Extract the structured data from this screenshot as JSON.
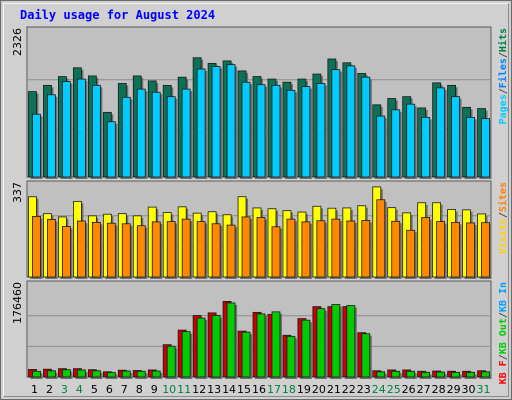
{
  "title": "Daily usage for August 2024",
  "chart_data": {
    "type": "bar",
    "categories": [
      "1",
      "2",
      "3",
      "4",
      "5",
      "6",
      "7",
      "8",
      "9",
      "10",
      "11",
      "12",
      "13",
      "14",
      "15",
      "16",
      "17",
      "18",
      "19",
      "20",
      "21",
      "22",
      "23",
      "24",
      "25",
      "26",
      "27",
      "28",
      "29",
      "30",
      "31"
    ],
    "weekend_categories": [
      "3",
      "4",
      "10",
      "11",
      "17",
      "18",
      "24",
      "25",
      "31"
    ],
    "panels": [
      {
        "id": "hits",
        "ymax": 2326,
        "ymax_label": "2326",
        "legend": [
          {
            "name": "Pages",
            "color": "#00ccff"
          },
          {
            "name": "/",
            "color": "#505050"
          },
          {
            "name": "Files",
            "color": "#0080ff"
          },
          {
            "name": "/",
            "color": "#505050"
          },
          {
            "name": "Hits",
            "color": "#008040"
          }
        ],
        "series": [
          {
            "name": "Hits",
            "color": "#0b7257",
            "values": [
              1360,
              1460,
              1600,
              1740,
              1610,
              1030,
              1490,
              1610,
              1530,
              1460,
              1590,
              1900,
              1810,
              1850,
              1690,
              1600,
              1560,
              1510,
              1560,
              1640,
              1880,
              1820,
              1650,
              1150,
              1250,
              1280,
              1100,
              1500,
              1460,
              1110,
              1090
            ]
          },
          {
            "name": "Files",
            "color": "#00ccff",
            "values": [
              1000,
              1310,
              1520,
              1560,
              1460,
              880,
              1270,
              1400,
              1350,
              1280,
              1400,
              1720,
              1760,
              1790,
              1510,
              1470,
              1460,
              1380,
              1440,
              1490,
              1710,
              1770,
              1590,
              970,
              1070,
              1160,
              950,
              1420,
              1280,
              950,
              930
            ]
          },
          {
            "name": "Pages",
            "color": "#00ccff",
            "values": [
              0,
              0,
              0,
              0,
              0,
              0,
              0,
              0,
              0,
              0,
              0,
              0,
              0,
              0,
              0,
              0,
              0,
              0,
              0,
              0,
              0,
              0,
              0,
              0,
              0,
              0,
              0,
              0,
              0,
              0,
              0
            ]
          }
        ]
      },
      {
        "id": "visits",
        "ymax": 337,
        "ymax_label": "337",
        "legend": [
          {
            "name": "Visits",
            "color": "#ffd000"
          },
          {
            "name": "/",
            "color": "#505050"
          },
          {
            "name": "Sites",
            "color": "#ff8000"
          }
        ],
        "series": [
          {
            "name": "Visits",
            "color": "#ffff00",
            "values": [
              294,
              232,
              220,
              277,
              224,
              230,
              232,
              224,
              256,
              236,
              257,
              234,
              239,
              228,
              294,
              253,
              250,
              243,
              238,
              259,
              252,
              253,
              261,
              330,
              254,
              235,
              272,
              272,
              247,
              246,
              231
            ]
          },
          {
            "name": "Sites",
            "color": "#ff8800",
            "values": [
              222,
              211,
              185,
              205,
              200,
              197,
              195,
              188,
              202,
              203,
              212,
              203,
              195,
              190,
              220,
              218,
              184,
              212,
              202,
              206,
              212,
              205,
              207,
              283,
              204,
              171,
              218,
              203,
              200,
              198,
              199
            ]
          }
        ]
      },
      {
        "id": "kbytes",
        "ymax": 176460,
        "ymax_label": "176460",
        "legend": [
          {
            "name": "KB F",
            "color": "#ff0000"
          },
          {
            "name": "/",
            "color": "#505050"
          },
          {
            "name": "KB Out",
            "color": "#00cc00"
          },
          {
            "name": "/",
            "color": "#505050"
          },
          {
            "name": "KB In",
            "color": "#00a0ff"
          }
        ],
        "series": [
          {
            "name": "KB F",
            "color": "#cc0000",
            "values": [
              14500,
              15000,
              16000,
              16000,
              14000,
              10000,
              13000,
              12500,
              13500,
              62000,
              90000,
              118000,
              123000,
              145000,
              88000,
              124000,
              120000,
              80000,
              112000,
              135000,
              135000,
              135000,
              85000,
              12000,
              13500,
              13500,
              11000,
              11500,
              11000,
              11000,
              12000
            ]
          },
          {
            "name": "KB Out",
            "color": "#00cc00",
            "values": [
              11000,
              12000,
              14000,
              13500,
              12000,
              8500,
              11500,
              11000,
              11500,
              59000,
              87000,
              113000,
              118000,
              142000,
              86000,
              121000,
              125000,
              78000,
              109000,
              131000,
              139000,
              137000,
              83000,
              10000,
              11000,
              11000,
              9000,
              9500,
              9000,
              9000,
              10000
            ]
          }
        ]
      }
    ]
  }
}
